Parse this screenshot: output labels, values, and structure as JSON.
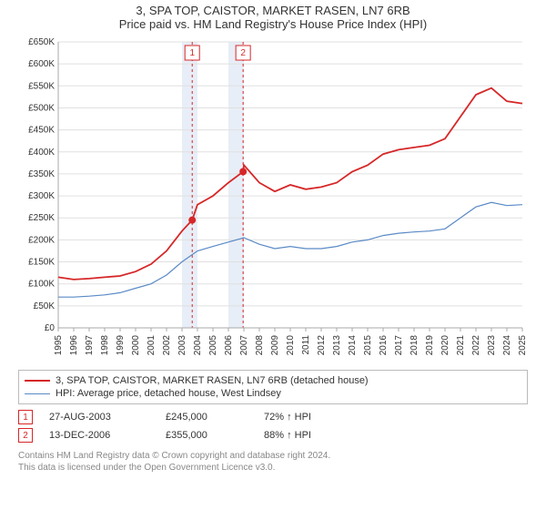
{
  "title": {
    "line1": "3, SPA TOP, CAISTOR, MARKET RASEN, LN7 6RB",
    "line2": "Price paid vs. HM Land Registry's House Price Index (HPI)"
  },
  "chart": {
    "type": "line",
    "background_color": "#ffffff",
    "grid_color": "#e0e0e0",
    "x": {
      "min": 1995,
      "max": 2025,
      "ticks": [
        1995,
        1996,
        1997,
        1998,
        1999,
        2000,
        2001,
        2002,
        2003,
        2004,
        2005,
        2006,
        2007,
        2008,
        2009,
        2010,
        2011,
        2012,
        2013,
        2014,
        2015,
        2016,
        2017,
        2018,
        2019,
        2020,
        2021,
        2022,
        2023,
        2024,
        2025
      ]
    },
    "y": {
      "min": 0,
      "max": 650000,
      "step": 50000,
      "tick_prefix": "£",
      "tick_suffix": "K",
      "ticks": [
        0,
        50,
        100,
        150,
        200,
        250,
        300,
        350,
        400,
        450,
        500,
        550,
        600,
        650
      ]
    },
    "bands": [
      {
        "from": 2003.0,
        "to": 2004.0,
        "color": "#e8eef7"
      },
      {
        "from": 2006.0,
        "to": 2007.0,
        "color": "#e8eef7"
      }
    ],
    "band_line_color": "#d62728",
    "markers": [
      {
        "id": "1",
        "x": 2003.66,
        "box_y_top": true
      },
      {
        "id": "2",
        "x": 2006.95,
        "box_y_top": true
      }
    ],
    "sale_points": [
      {
        "x": 2003.66,
        "y": 245000
      },
      {
        "x": 2006.95,
        "y": 355000
      }
    ],
    "series": [
      {
        "key": "price_paid",
        "color": "#d62728",
        "width": 1.8,
        "points": [
          [
            1995,
            115000
          ],
          [
            1996,
            110000
          ],
          [
            1997,
            112000
          ],
          [
            1998,
            115000
          ],
          [
            1999,
            118000
          ],
          [
            2000,
            128000
          ],
          [
            2001,
            145000
          ],
          [
            2002,
            175000
          ],
          [
            2003,
            220000
          ],
          [
            2003.66,
            245000
          ],
          [
            2004,
            280000
          ],
          [
            2005,
            300000
          ],
          [
            2006,
            330000
          ],
          [
            2006.95,
            355000
          ],
          [
            2007,
            370000
          ],
          [
            2008,
            330000
          ],
          [
            2009,
            310000
          ],
          [
            2010,
            325000
          ],
          [
            2011,
            315000
          ],
          [
            2012,
            320000
          ],
          [
            2013,
            330000
          ],
          [
            2014,
            355000
          ],
          [
            2015,
            370000
          ],
          [
            2016,
            395000
          ],
          [
            2017,
            405000
          ],
          [
            2018,
            410000
          ],
          [
            2019,
            415000
          ],
          [
            2020,
            430000
          ],
          [
            2021,
            480000
          ],
          [
            2022,
            530000
          ],
          [
            2023,
            545000
          ],
          [
            2024,
            515000
          ],
          [
            2025,
            510000
          ]
        ]
      },
      {
        "key": "hpi",
        "color": "#5a8ac6",
        "width": 1.2,
        "points": [
          [
            1995,
            70000
          ],
          [
            1996,
            70000
          ],
          [
            1997,
            72000
          ],
          [
            1998,
            75000
          ],
          [
            1999,
            80000
          ],
          [
            2000,
            90000
          ],
          [
            2001,
            100000
          ],
          [
            2002,
            120000
          ],
          [
            2003,
            150000
          ],
          [
            2004,
            175000
          ],
          [
            2005,
            185000
          ],
          [
            2006,
            195000
          ],
          [
            2007,
            205000
          ],
          [
            2008,
            190000
          ],
          [
            2009,
            180000
          ],
          [
            2010,
            185000
          ],
          [
            2011,
            180000
          ],
          [
            2012,
            180000
          ],
          [
            2013,
            185000
          ],
          [
            2014,
            195000
          ],
          [
            2015,
            200000
          ],
          [
            2016,
            210000
          ],
          [
            2017,
            215000
          ],
          [
            2018,
            218000
          ],
          [
            2019,
            220000
          ],
          [
            2020,
            225000
          ],
          [
            2021,
            250000
          ],
          [
            2022,
            275000
          ],
          [
            2023,
            285000
          ],
          [
            2024,
            278000
          ],
          [
            2025,
            280000
          ]
        ]
      }
    ]
  },
  "legend": {
    "items": [
      {
        "color": "#d62728",
        "label": "3, SPA TOP, CAISTOR, MARKET RASEN, LN7 6RB (detached house)"
      },
      {
        "color": "#5a8ac6",
        "label": "HPI: Average price, detached house, West Lindsey"
      }
    ]
  },
  "sales": [
    {
      "marker": "1",
      "date": "27-AUG-2003",
      "price": "£245,000",
      "pct": "72% ↑ HPI"
    },
    {
      "marker": "2",
      "date": "13-DEC-2006",
      "price": "£355,000",
      "pct": "88% ↑ HPI"
    }
  ],
  "footer": {
    "line1": "Contains HM Land Registry data © Crown copyright and database right 2024.",
    "line2": "This data is licensed under the Open Government Licence v3.0."
  }
}
